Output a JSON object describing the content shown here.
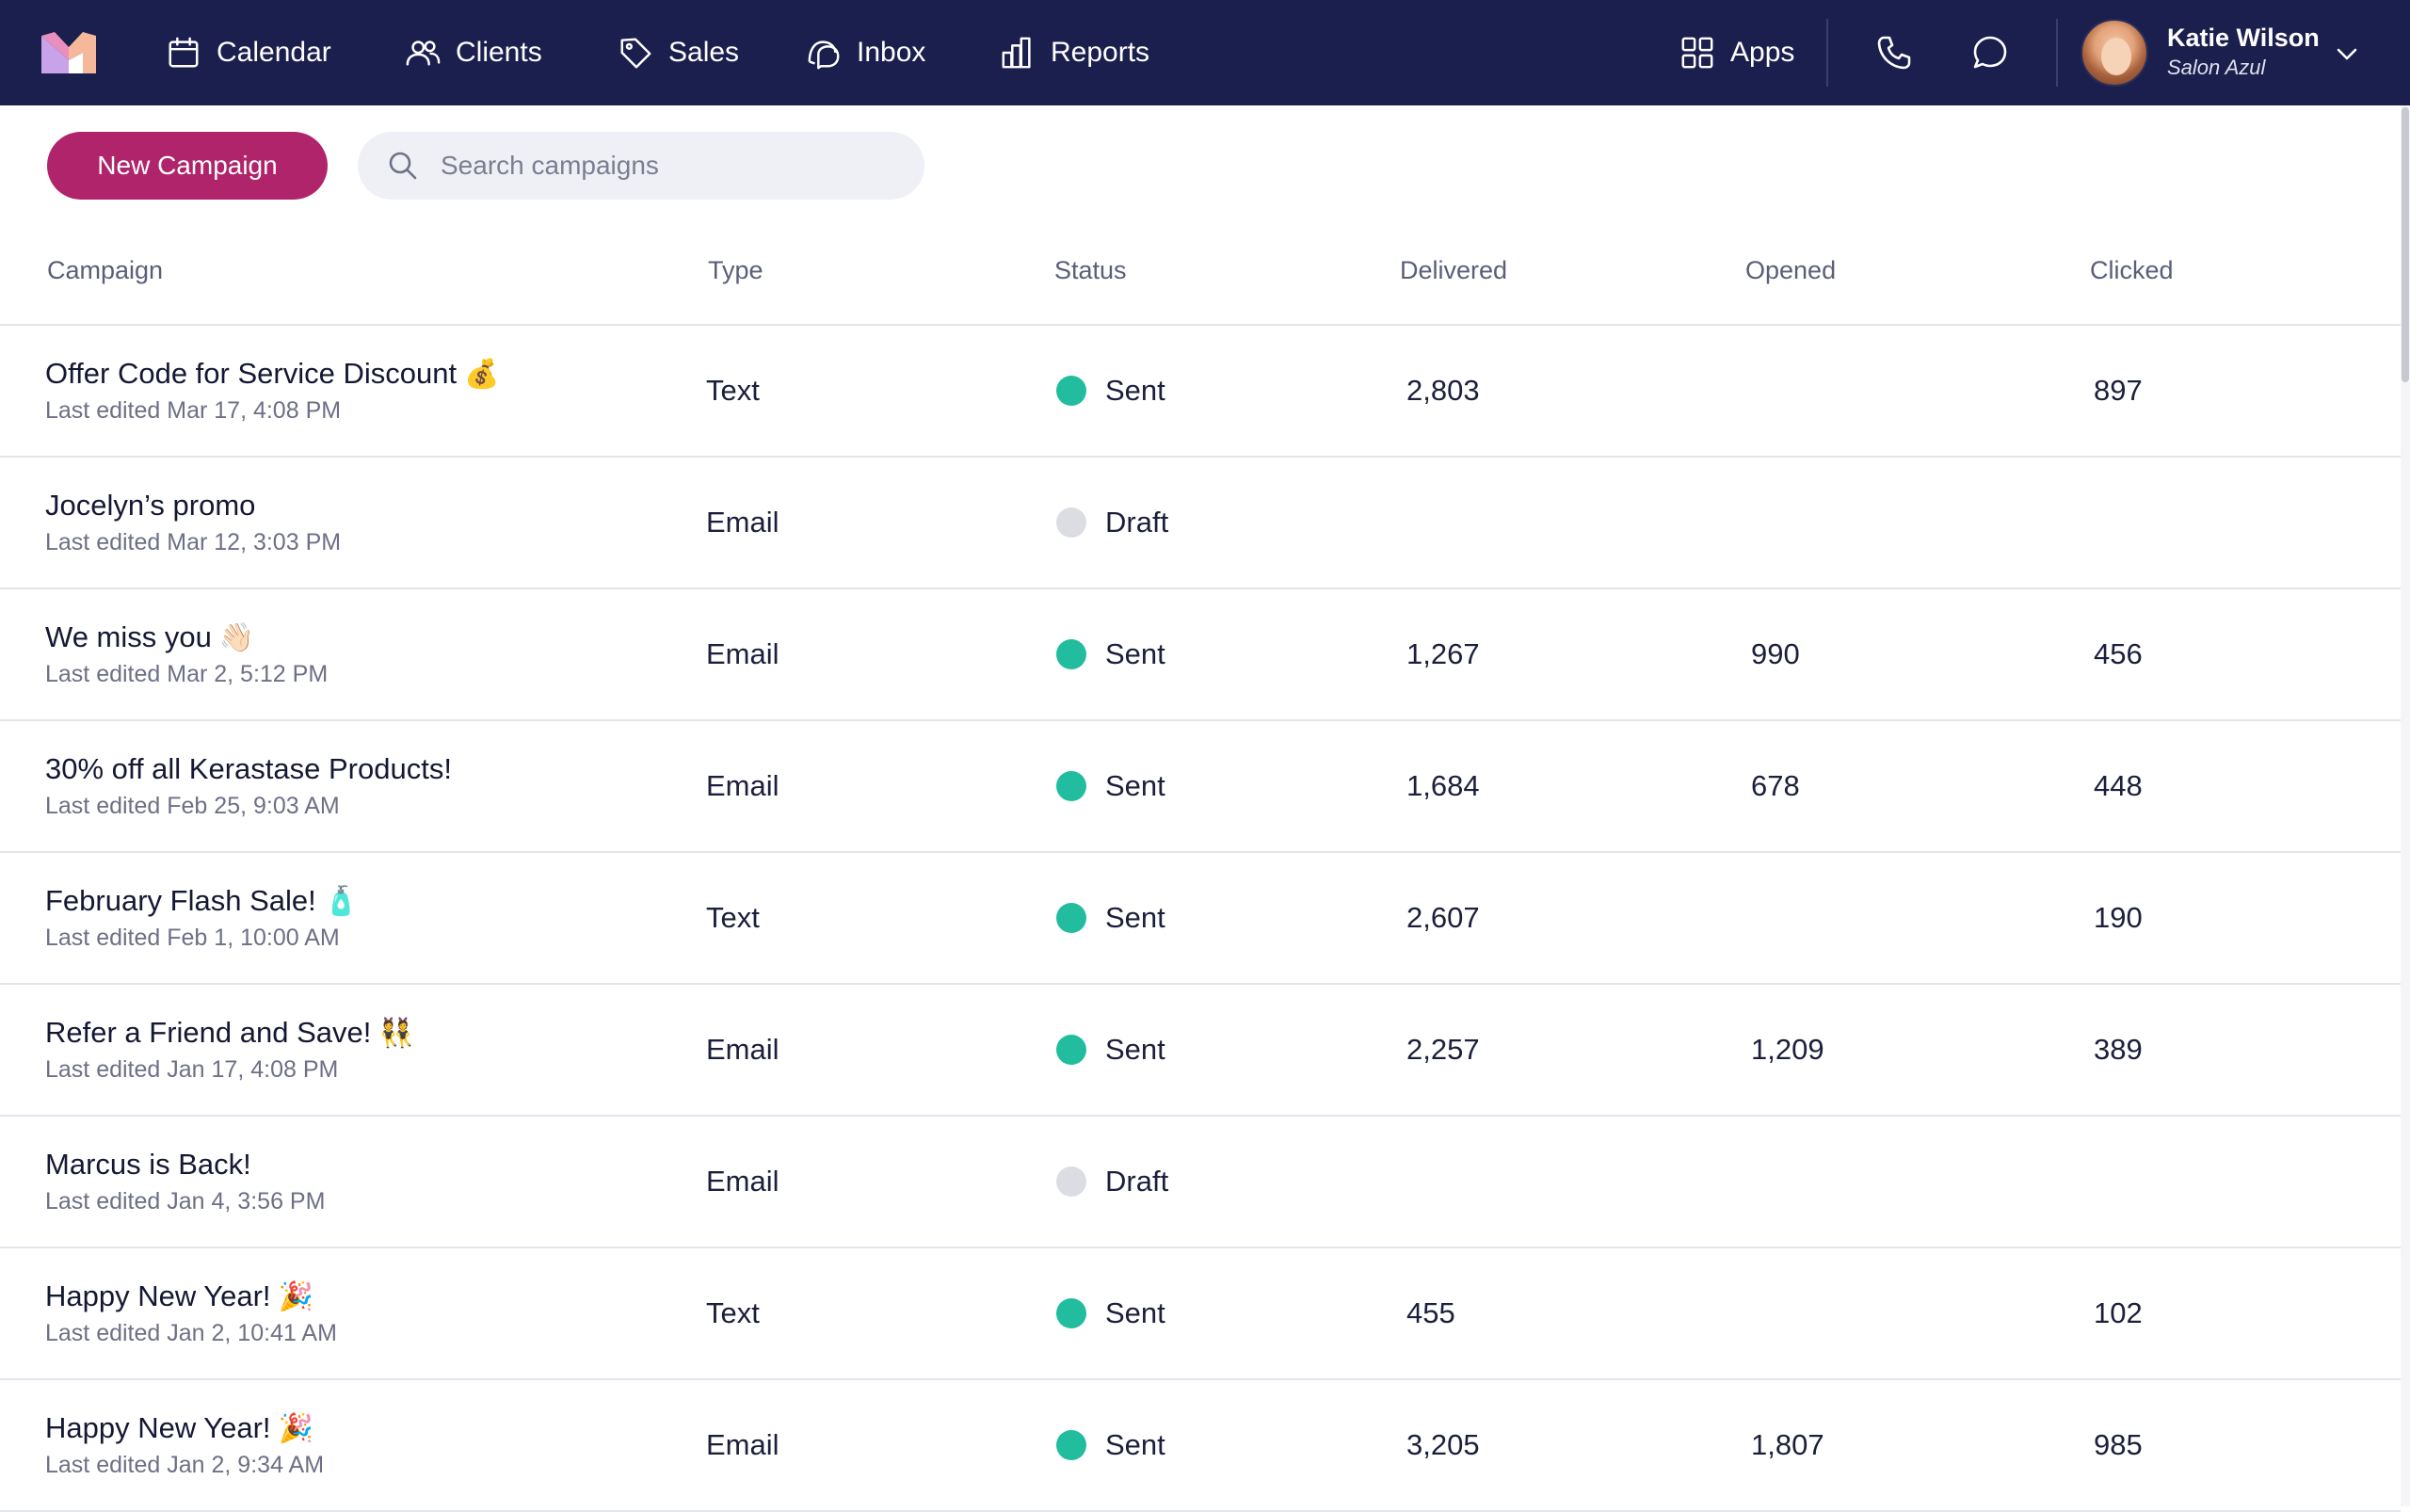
{
  "colors": {
    "nav_bg": "#1b1f4d",
    "primary_button": "#b0246b",
    "status_sent": "#21bd9e",
    "status_draft": "#dcdde2"
  },
  "nav": {
    "logo_icon": "brand-logo-icon",
    "items": [
      {
        "label": "Calendar",
        "icon": "calendar-icon"
      },
      {
        "label": "Clients",
        "icon": "users-icon"
      },
      {
        "label": "Sales",
        "icon": "tag-icon"
      },
      {
        "label": "Inbox",
        "icon": "chat-bubbles-icon"
      },
      {
        "label": "Reports",
        "icon": "bar-chart-icon"
      }
    ],
    "apps": {
      "label": "Apps",
      "icon": "grid-icon"
    },
    "phone_icon": "phone-icon",
    "message_icon": "message-icon",
    "user": {
      "name": "Katie Wilson",
      "business": "Salon Azul",
      "menu_icon": "chevron-down-icon"
    }
  },
  "toolbar": {
    "new_campaign_label": "New Campaign",
    "search_placeholder": "Search campaigns",
    "search_value": ""
  },
  "table": {
    "columns": [
      "Campaign",
      "Type",
      "Status",
      "Delivered",
      "Opened",
      "Clicked"
    ],
    "rows": [
      {
        "title": "Offer Code for Service Discount",
        "emoji": "💰",
        "edited": "Last edited Mar 17, 4:08 PM",
        "type": "Text",
        "status": "Sent",
        "delivered": "2,803",
        "opened": "",
        "clicked": "897"
      },
      {
        "title": "Jocelyn’s promo",
        "emoji": "",
        "edited": "Last edited Mar 12, 3:03 PM",
        "type": "Email",
        "status": "Draft",
        "delivered": "",
        "opened": "",
        "clicked": ""
      },
      {
        "title": "We miss you",
        "emoji": "👋🏻",
        "edited": "Last edited Mar 2, 5:12 PM",
        "type": "Email",
        "status": "Sent",
        "delivered": "1,267",
        "opened": "990",
        "clicked": "456"
      },
      {
        "title": "30% off all Kerastase Products!",
        "emoji": "",
        "edited": "Last edited Feb 25, 9:03 AM",
        "type": "Email",
        "status": "Sent",
        "delivered": "1,684",
        "opened": "678",
        "clicked": "448"
      },
      {
        "title": "February Flash Sale!",
        "emoji": "🧴",
        "edited": "Last edited Feb 1, 10:00 AM",
        "type": "Text",
        "status": "Sent",
        "delivered": "2,607",
        "opened": "",
        "clicked": "190"
      },
      {
        "title": "Refer a Friend and Save!",
        "emoji": "👯",
        "edited": "Last edited Jan 17, 4:08 PM",
        "type": "Email",
        "status": "Sent",
        "delivered": "2,257",
        "opened": "1,209",
        "clicked": "389"
      },
      {
        "title": "Marcus is Back!",
        "emoji": "",
        "edited": "Last edited Jan 4, 3:56 PM",
        "type": "Email",
        "status": "Draft",
        "delivered": "",
        "opened": "",
        "clicked": ""
      },
      {
        "title": "Happy New Year!",
        "emoji": "🎉",
        "edited": "Last edited Jan 2, 10:41 AM",
        "type": "Text",
        "status": "Sent",
        "delivered": "455",
        "opened": "",
        "clicked": "102"
      },
      {
        "title": "Happy New Year!",
        "emoji": "🎉",
        "edited": "Last edited Jan 2, 9:34 AM",
        "type": "Email",
        "status": "Sent",
        "delivered": "3,205",
        "opened": "1,807",
        "clicked": "985"
      }
    ]
  }
}
